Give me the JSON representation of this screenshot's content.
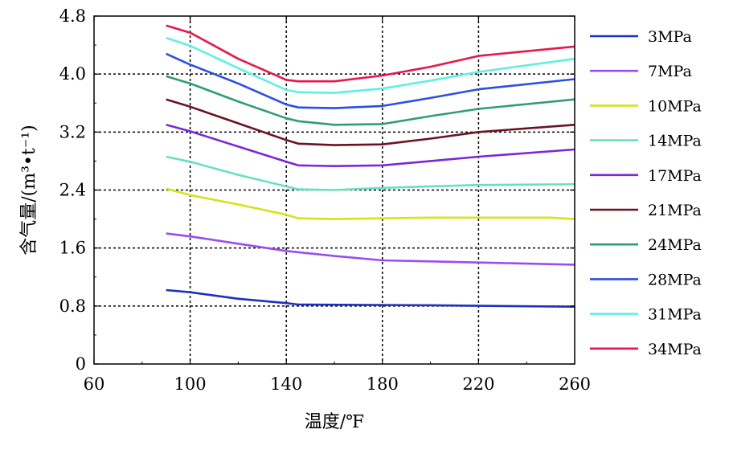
{
  "chart_data": {
    "type": "line",
    "xlabel": "温度/℉",
    "ylabel": "含气量/(m³•t⁻¹)",
    "xlim": [
      60,
      260
    ],
    "ylim": [
      0,
      4.8
    ],
    "x_ticks": [
      "60",
      "100",
      "140",
      "180",
      "220",
      "260"
    ],
    "y_ticks": [
      "0",
      "0.8",
      "1.6",
      "2.4",
      "3.2",
      "4.0",
      "4.8"
    ],
    "grid": "dotted at x=100,140,180,220 and y=0.8,1.6,2.4,3.2,4.0",
    "legend_position": "right",
    "series": [
      {
        "name": "3MPa",
        "color": "#1f2fbf",
        "points": [
          [
            90,
            1.02
          ],
          [
            100,
            0.99
          ],
          [
            120,
            0.9
          ],
          [
            140,
            0.84
          ],
          [
            145,
            0.82
          ],
          [
            200,
            0.81
          ],
          [
            260,
            0.79
          ]
        ]
      },
      {
        "name": "7MPa",
        "color": "#9b4df0",
        "points": [
          [
            90,
            1.8
          ],
          [
            100,
            1.76
          ],
          [
            120,
            1.66
          ],
          [
            140,
            1.56
          ],
          [
            160,
            1.49
          ],
          [
            180,
            1.43
          ],
          [
            220,
            1.4
          ],
          [
            260,
            1.37
          ]
        ]
      },
      {
        "name": "10MPa",
        "color": "#d4e41a",
        "points": [
          [
            90,
            2.42
          ],
          [
            100,
            2.33
          ],
          [
            120,
            2.2
          ],
          [
            140,
            2.06
          ],
          [
            145,
            2.01
          ],
          [
            160,
            2.0
          ],
          [
            200,
            2.02
          ],
          [
            250,
            2.02
          ],
          [
            260,
            2.0
          ]
        ]
      },
      {
        "name": "14MPa",
        "color": "#67e0c2",
        "points": [
          [
            90,
            2.86
          ],
          [
            100,
            2.79
          ],
          [
            120,
            2.61
          ],
          [
            140,
            2.45
          ],
          [
            145,
            2.41
          ],
          [
            160,
            2.4
          ],
          [
            180,
            2.43
          ],
          [
            220,
            2.47
          ],
          [
            260,
            2.48
          ]
        ]
      },
      {
        "name": "17MPa",
        "color": "#7a28d8",
        "points": [
          [
            90,
            3.3
          ],
          [
            100,
            3.21
          ],
          [
            120,
            3.0
          ],
          [
            140,
            2.79
          ],
          [
            145,
            2.74
          ],
          [
            160,
            2.73
          ],
          [
            180,
            2.74
          ],
          [
            200,
            2.8
          ],
          [
            220,
            2.86
          ],
          [
            260,
            2.96
          ]
        ]
      },
      {
        "name": "21MPa",
        "color": "#6b1222",
        "points": [
          [
            90,
            3.65
          ],
          [
            100,
            3.55
          ],
          [
            120,
            3.32
          ],
          [
            140,
            3.09
          ],
          [
            145,
            3.04
          ],
          [
            160,
            3.02
          ],
          [
            180,
            3.03
          ],
          [
            200,
            3.11
          ],
          [
            220,
            3.2
          ],
          [
            260,
            3.3
          ]
        ]
      },
      {
        "name": "24MPa",
        "color": "#2e9e74",
        "points": [
          [
            90,
            3.97
          ],
          [
            100,
            3.87
          ],
          [
            120,
            3.62
          ],
          [
            140,
            3.39
          ],
          [
            145,
            3.35
          ],
          [
            160,
            3.3
          ],
          [
            180,
            3.31
          ],
          [
            200,
            3.42
          ],
          [
            220,
            3.52
          ],
          [
            260,
            3.65
          ]
        ]
      },
      {
        "name": "28MPa",
        "color": "#2a4ee8",
        "points": [
          [
            90,
            4.28
          ],
          [
            100,
            4.13
          ],
          [
            120,
            3.87
          ],
          [
            140,
            3.58
          ],
          [
            145,
            3.54
          ],
          [
            160,
            3.53
          ],
          [
            180,
            3.56
          ],
          [
            200,
            3.67
          ],
          [
            220,
            3.79
          ],
          [
            260,
            3.93
          ]
        ]
      },
      {
        "name": "31MPa",
        "color": "#5ef0e0",
        "points": [
          [
            90,
            4.5
          ],
          [
            100,
            4.39
          ],
          [
            120,
            4.08
          ],
          [
            140,
            3.78
          ],
          [
            145,
            3.75
          ],
          [
            160,
            3.74
          ],
          [
            180,
            3.8
          ],
          [
            200,
            3.91
          ],
          [
            220,
            4.03
          ],
          [
            260,
            4.21
          ]
        ]
      },
      {
        "name": "34MPa",
        "color": "#e8174a",
        "points": [
          [
            90,
            4.67
          ],
          [
            100,
            4.57
          ],
          [
            120,
            4.21
          ],
          [
            140,
            3.92
          ],
          [
            145,
            3.9
          ],
          [
            160,
            3.9
          ],
          [
            180,
            3.98
          ],
          [
            200,
            4.1
          ],
          [
            220,
            4.25
          ],
          [
            260,
            4.38
          ]
        ]
      }
    ]
  }
}
